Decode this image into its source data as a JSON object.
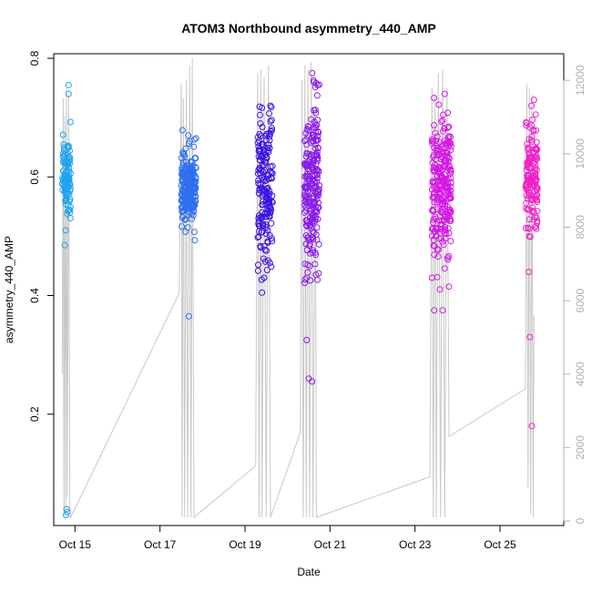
{
  "chart_data": {
    "type": "scatter",
    "title": "ATOM3 Northbound asymmetry_440_AMP",
    "xlabel": "Date",
    "ylabel": "asymmetry_440_AMP",
    "x_ticks": [
      "Oct 15",
      "Oct 17",
      "Oct 19",
      "Oct 21",
      "Oct 23",
      "Oct 25"
    ],
    "y_ticks": [
      0.2,
      0.4,
      0.6,
      0.8
    ],
    "ylim": [
      0.02,
      0.8
    ],
    "y2_ticks": [
      0,
      2000,
      4000,
      6000,
      8000,
      10000,
      12000
    ],
    "y2lim": [
      0,
      12600
    ],
    "xlim": [
      14.5,
      26.5
    ],
    "clusters": [
      {
        "day": 14.7,
        "width": 0.2,
        "color": "#1fa3ee",
        "min": 0.47,
        "max": 0.7,
        "center": 0.6,
        "spread": 0.035,
        "count": 110,
        "outliers": [
          [
            14.85,
            0.755
          ],
          [
            14.85,
            0.74
          ],
          [
            14.8,
            0.04
          ],
          [
            14.82,
            0.035
          ],
          [
            14.79,
            0.03
          ],
          [
            14.78,
            0.51
          ],
          [
            14.76,
            0.485
          ]
        ]
      },
      {
        "day": 17.5,
        "width": 0.35,
        "color": "#2f6ff0",
        "min": 0.43,
        "max": 0.68,
        "center": 0.58,
        "spread": 0.03,
        "count": 230,
        "outliers": [
          [
            17.68,
            0.365
          ],
          [
            17.7,
            0.66
          ],
          [
            17.85,
            0.665
          ]
        ]
      },
      {
        "day": 19.3,
        "width": 0.35,
        "color": "#3a10e0",
        "min": 0.4,
        "max": 0.72,
        "center": 0.57,
        "spread": 0.07,
        "count": 170,
        "outliers": [
          [
            19.4,
            0.405
          ],
          [
            19.45,
            0.43
          ],
          [
            19.6,
            0.72
          ]
        ]
      },
      {
        "day": 20.4,
        "width": 0.35,
        "color": "#8a1ae8",
        "min": 0.42,
        "max": 0.77,
        "center": 0.58,
        "spread": 0.07,
        "count": 230,
        "outliers": [
          [
            20.58,
            0.775
          ],
          [
            20.62,
            0.76
          ],
          [
            20.45,
            0.325
          ],
          [
            20.5,
            0.26
          ],
          [
            20.58,
            0.255
          ],
          [
            20.45,
            0.43
          ]
        ]
      },
      {
        "day": 23.4,
        "width": 0.45,
        "color": "#d416e6",
        "min": 0.41,
        "max": 0.74,
        "center": 0.58,
        "spread": 0.06,
        "count": 250,
        "outliers": [
          [
            23.7,
            0.74
          ],
          [
            23.45,
            0.375
          ],
          [
            23.65,
            0.375
          ],
          [
            23.8,
            0.415
          ],
          [
            23.4,
            0.43
          ]
        ]
      },
      {
        "day": 25.6,
        "width": 0.28,
        "color": "#f020c8",
        "min": 0.43,
        "max": 0.73,
        "center": 0.6,
        "spread": 0.045,
        "count": 150,
        "outliers": [
          [
            25.8,
            0.73
          ],
          [
            25.74,
            0.72
          ],
          [
            25.7,
            0.33
          ],
          [
            25.75,
            0.18
          ],
          [
            25.68,
            0.44
          ]
        ]
      }
    ],
    "gray_series": {
      "name": "",
      "color": "#c8c8c8",
      "points": [
        [
          14.7,
          4000
        ],
        [
          14.72,
          11500
        ],
        [
          14.74,
          200
        ],
        [
          14.76,
          11000
        ],
        [
          14.78,
          300
        ],
        [
          14.8,
          11800
        ],
        [
          14.82,
          600
        ],
        [
          14.85,
          11600
        ],
        [
          14.88,
          300
        ],
        [
          14.9,
          100
        ],
        [
          17.45,
          6200
        ],
        [
          17.5,
          11900
        ],
        [
          17.52,
          100
        ],
        [
          17.55,
          11500
        ],
        [
          17.58,
          100
        ],
        [
          17.62,
          12000
        ],
        [
          17.65,
          100
        ],
        [
          17.7,
          12400
        ],
        [
          17.73,
          100
        ],
        [
          17.76,
          12600
        ],
        [
          17.8,
          100
        ],
        [
          19.25,
          1500
        ],
        [
          19.3,
          12200
        ],
        [
          19.33,
          100
        ],
        [
          19.37,
          12300
        ],
        [
          19.4,
          100
        ],
        [
          19.45,
          12100
        ],
        [
          19.5,
          100
        ],
        [
          19.55,
          12400
        ],
        [
          19.6,
          100
        ],
        [
          20.3,
          2400
        ],
        [
          20.34,
          12000
        ],
        [
          20.37,
          100
        ],
        [
          20.41,
          12400
        ],
        [
          20.44,
          100
        ],
        [
          20.48,
          12300
        ],
        [
          20.52,
          100
        ],
        [
          20.56,
          12500
        ],
        [
          20.6,
          100
        ],
        [
          20.65,
          11200
        ],
        [
          20.68,
          100
        ],
        [
          23.35,
          1200
        ],
        [
          23.4,
          11800
        ],
        [
          23.43,
          100
        ],
        [
          23.47,
          11600
        ],
        [
          23.5,
          100
        ],
        [
          23.55,
          12200
        ],
        [
          23.6,
          100
        ],
        [
          23.65,
          12300
        ],
        [
          23.7,
          100
        ],
        [
          23.75,
          11800
        ],
        [
          23.8,
          2300
        ],
        [
          25.6,
          3600
        ],
        [
          25.63,
          11900
        ],
        [
          25.66,
          900
        ],
        [
          25.69,
          11800
        ],
        [
          25.72,
          200
        ],
        [
          25.75,
          11600
        ],
        [
          25.78,
          100
        ],
        [
          25.8,
          5600
        ]
      ]
    }
  }
}
